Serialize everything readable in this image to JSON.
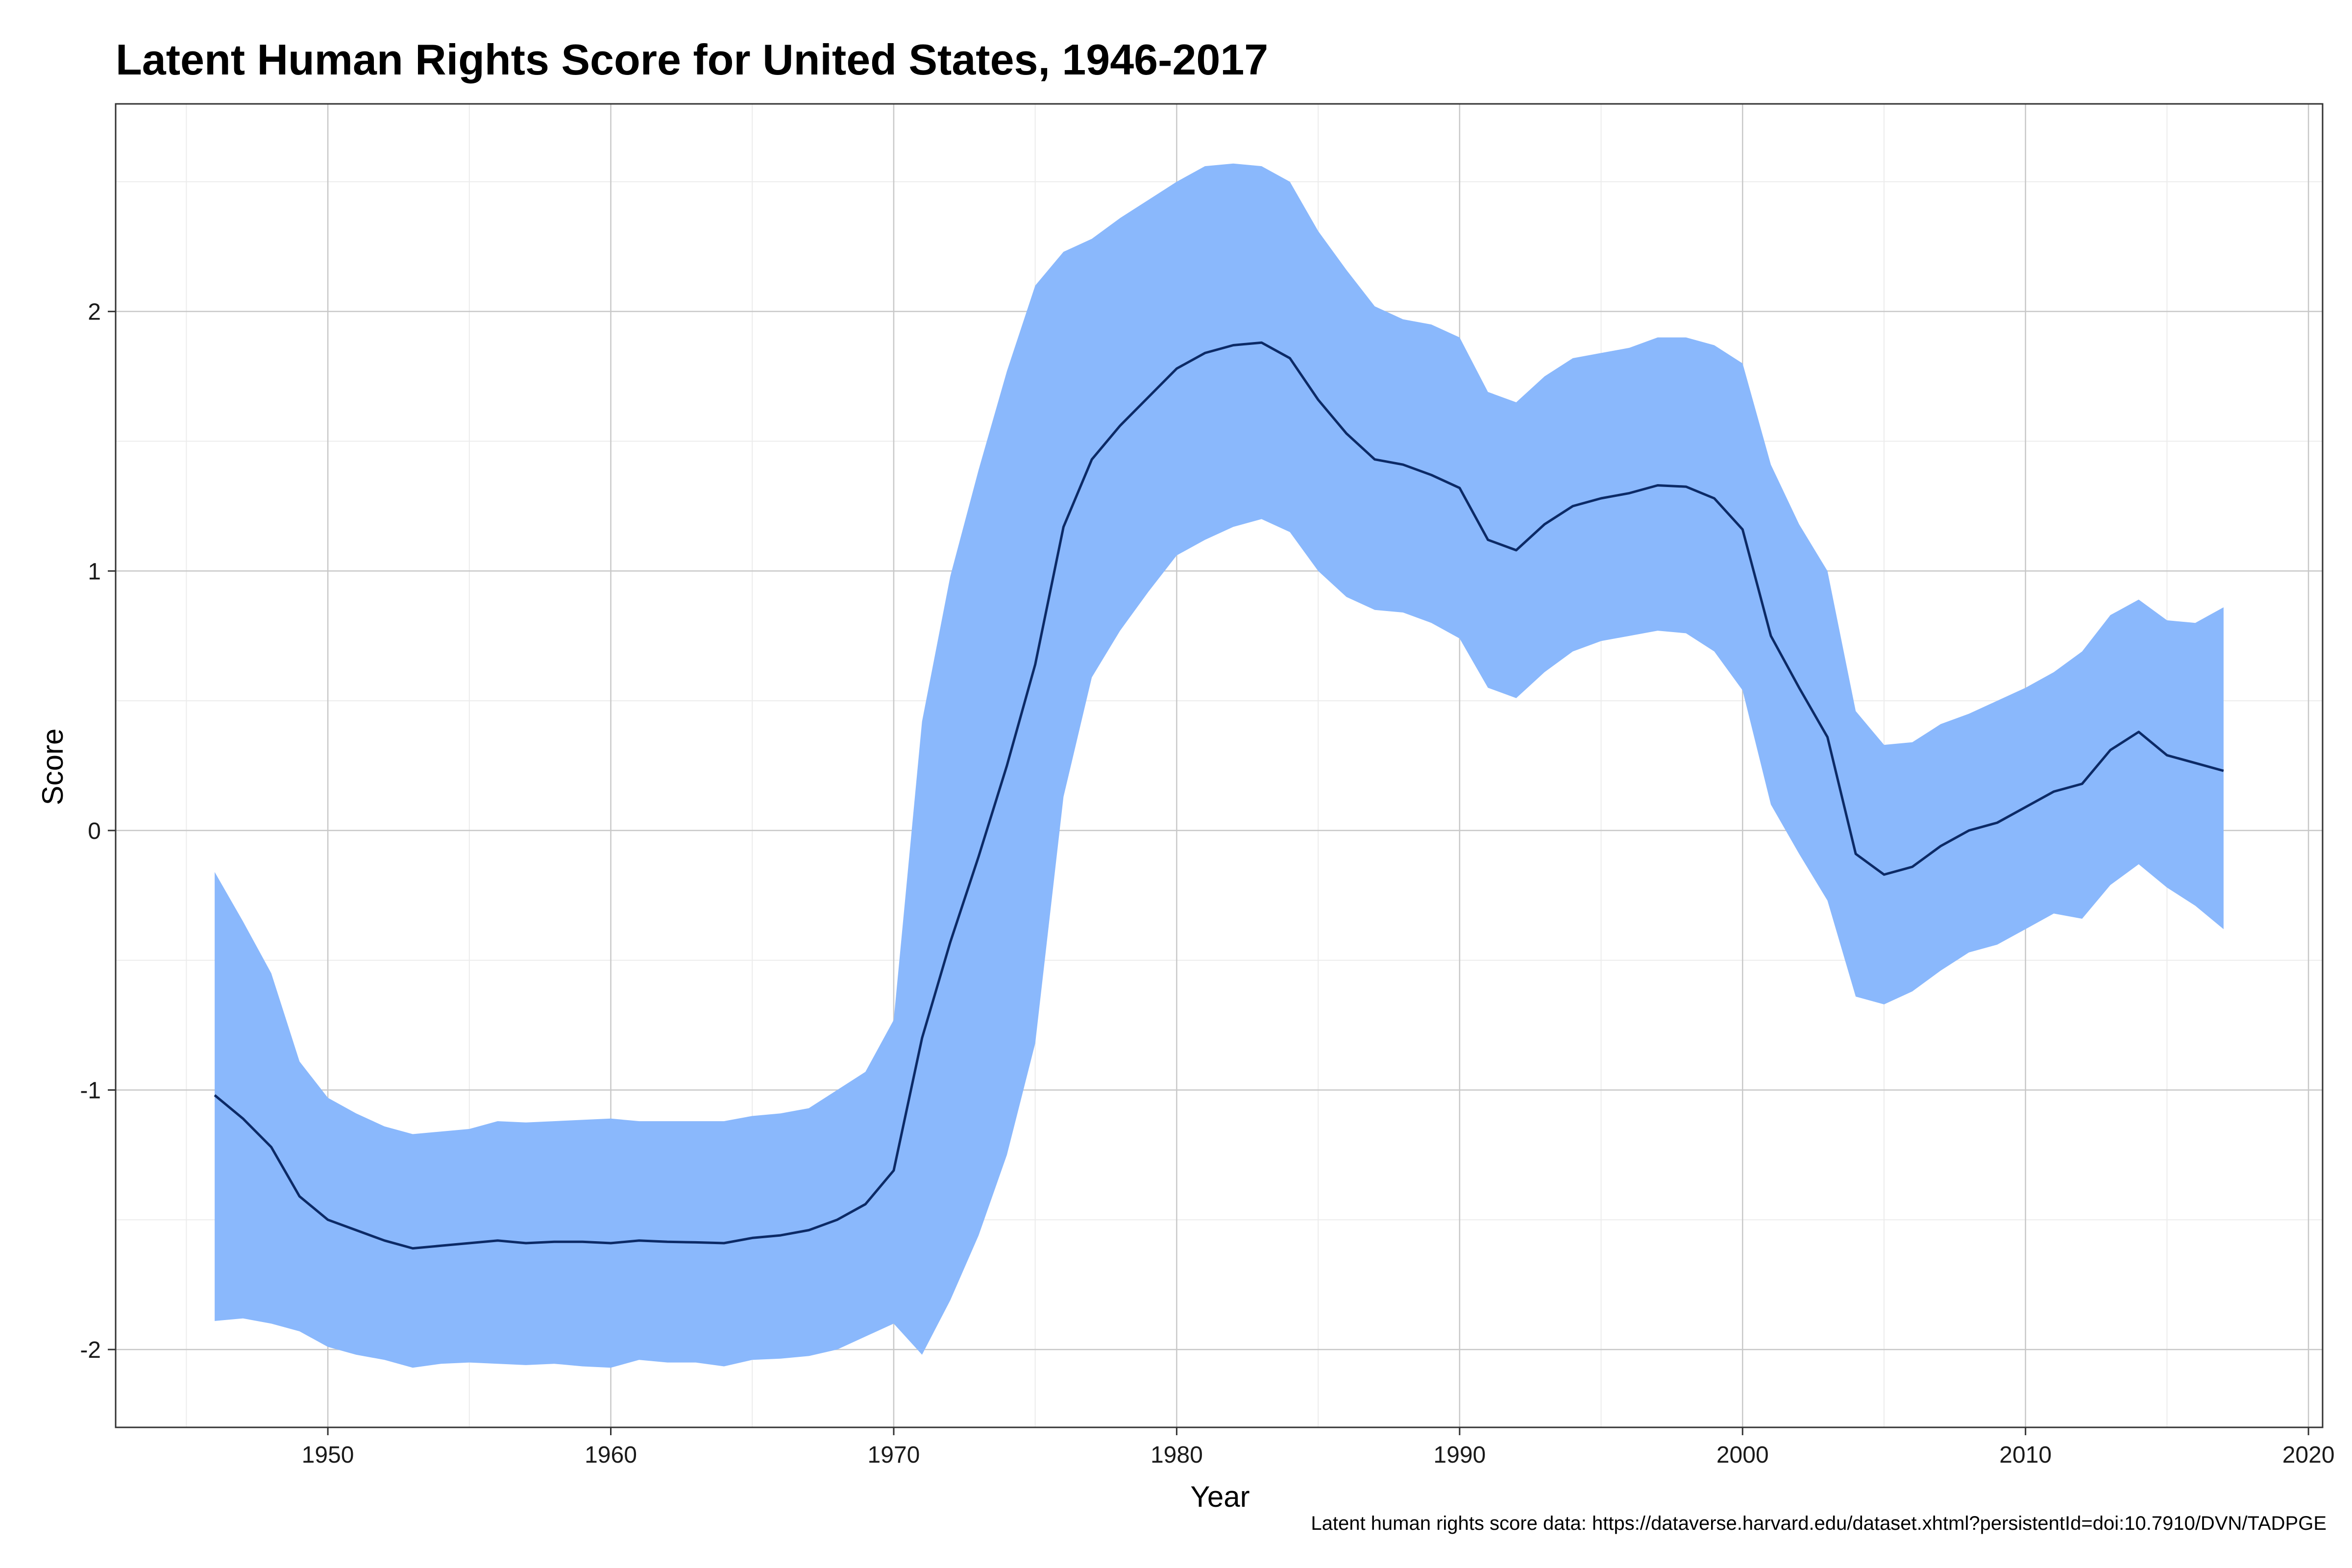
{
  "chart_data": {
    "type": "line",
    "title": "Latent Human Rights Score for United States, 1946-2017",
    "xlabel": "Year",
    "ylabel": "Score",
    "caption": "Latent human rights score data: https://dataverse.harvard.edu/dataset.xhtml?persistentId=doi:10.7910/DVN/TADPGE",
    "xlim": [
      1942.5,
      2020.5
    ],
    "ylim": [
      -2.3,
      2.8
    ],
    "x_ticks": [
      1950,
      1960,
      1970,
      1980,
      1990,
      2000,
      2010,
      2020
    ],
    "x_tick_labels": [
      "1950",
      "1960",
      "1970",
      "1980",
      "1990",
      "2000",
      "2010",
      "2020"
    ],
    "y_ticks": [
      -2,
      -1,
      0,
      1,
      2
    ],
    "y_tick_labels": [
      "-2",
      "-1",
      "0",
      "1",
      "2"
    ],
    "grid": true,
    "colors": {
      "band": "#8ab8fc",
      "line": "#0c2a66",
      "grid_major": "#c8c8c8",
      "grid_minor": "#ececec",
      "frame": "#333333"
    },
    "x": [
      1946,
      1947,
      1948,
      1949,
      1950,
      1951,
      1952,
      1953,
      1954,
      1955,
      1956,
      1957,
      1958,
      1959,
      1960,
      1961,
      1962,
      1963,
      1964,
      1965,
      1966,
      1967,
      1968,
      1969,
      1970,
      1971,
      1972,
      1973,
      1974,
      1975,
      1976,
      1977,
      1978,
      1979,
      1980,
      1981,
      1982,
      1983,
      1984,
      1985,
      1986,
      1987,
      1988,
      1989,
      1990,
      1991,
      1992,
      1993,
      1994,
      1995,
      1996,
      1997,
      1998,
      1999,
      2000,
      2001,
      2002,
      2003,
      2004,
      2005,
      2006,
      2007,
      2008,
      2009,
      2010,
      2011,
      2012,
      2013,
      2014,
      2015,
      2016,
      2017
    ],
    "series": [
      {
        "name": "Score",
        "values": [
          -1.02,
          -1.11,
          -1.22,
          -1.41,
          -1.5,
          -1.54,
          -1.58,
          -1.61,
          -1.6,
          -1.59,
          -1.58,
          -1.59,
          -1.585,
          -1.585,
          -1.59,
          -1.58,
          -1.585,
          -1.587,
          -1.59,
          -1.57,
          -1.56,
          -1.54,
          -1.5,
          -1.44,
          -1.31,
          -0.8,
          -0.43,
          -0.1,
          0.25,
          0.64,
          1.17,
          1.43,
          1.56,
          1.67,
          1.78,
          1.84,
          1.87,
          1.88,
          1.82,
          1.66,
          1.53,
          1.43,
          1.41,
          1.37,
          1.32,
          1.12,
          1.08,
          1.18,
          1.25,
          1.28,
          1.3,
          1.33,
          1.325,
          1.28,
          1.16,
          0.75,
          0.55,
          0.36,
          -0.09,
          -0.17,
          -0.14,
          -0.06,
          0.0,
          0.03,
          0.09,
          0.15,
          0.18,
          0.31,
          0.38,
          0.29,
          0.26,
          0.23
        ]
      },
      {
        "name": "Upper",
        "values": [
          -0.16,
          -0.35,
          -0.55,
          -0.89,
          -1.03,
          -1.09,
          -1.14,
          -1.17,
          -1.16,
          -1.15,
          -1.12,
          -1.125,
          -1.12,
          -1.115,
          -1.11,
          -1.12,
          -1.12,
          -1.12,
          -1.12,
          -1.1,
          -1.09,
          -1.07,
          -1.0,
          -0.93,
          -0.73,
          0.42,
          0.98,
          1.39,
          1.77,
          2.1,
          2.23,
          2.28,
          2.36,
          2.43,
          2.5,
          2.56,
          2.57,
          2.56,
          2.5,
          2.31,
          2.16,
          2.02,
          1.97,
          1.95,
          1.9,
          1.69,
          1.65,
          1.75,
          1.82,
          1.84,
          1.86,
          1.9,
          1.9,
          1.87,
          1.8,
          1.41,
          1.18,
          1.0,
          0.46,
          0.33,
          0.34,
          0.41,
          0.45,
          0.5,
          0.55,
          0.61,
          0.69,
          0.83,
          0.89,
          0.81,
          0.8,
          0.86
        ]
      },
      {
        "name": "Lower",
        "values": [
          -1.89,
          -1.88,
          -1.9,
          -1.93,
          -1.99,
          -2.02,
          -2.04,
          -2.07,
          -2.055,
          -2.05,
          -2.055,
          -2.06,
          -2.055,
          -2.065,
          -2.07,
          -2.04,
          -2.05,
          -2.05,
          -2.065,
          -2.04,
          -2.035,
          -2.025,
          -2.0,
          -1.95,
          -1.9,
          -2.02,
          -1.81,
          -1.56,
          -1.25,
          -0.82,
          0.13,
          0.59,
          0.77,
          0.92,
          1.06,
          1.12,
          1.17,
          1.2,
          1.15,
          1.0,
          0.9,
          0.85,
          0.84,
          0.8,
          0.74,
          0.55,
          0.51,
          0.61,
          0.69,
          0.73,
          0.75,
          0.77,
          0.76,
          0.69,
          0.54,
          0.1,
          -0.09,
          -0.27,
          -0.64,
          -0.67,
          -0.62,
          -0.54,
          -0.47,
          -0.44,
          -0.38,
          -0.32,
          -0.34,
          -0.21,
          -0.13,
          -0.22,
          -0.29,
          -0.38
        ]
      }
    ]
  }
}
